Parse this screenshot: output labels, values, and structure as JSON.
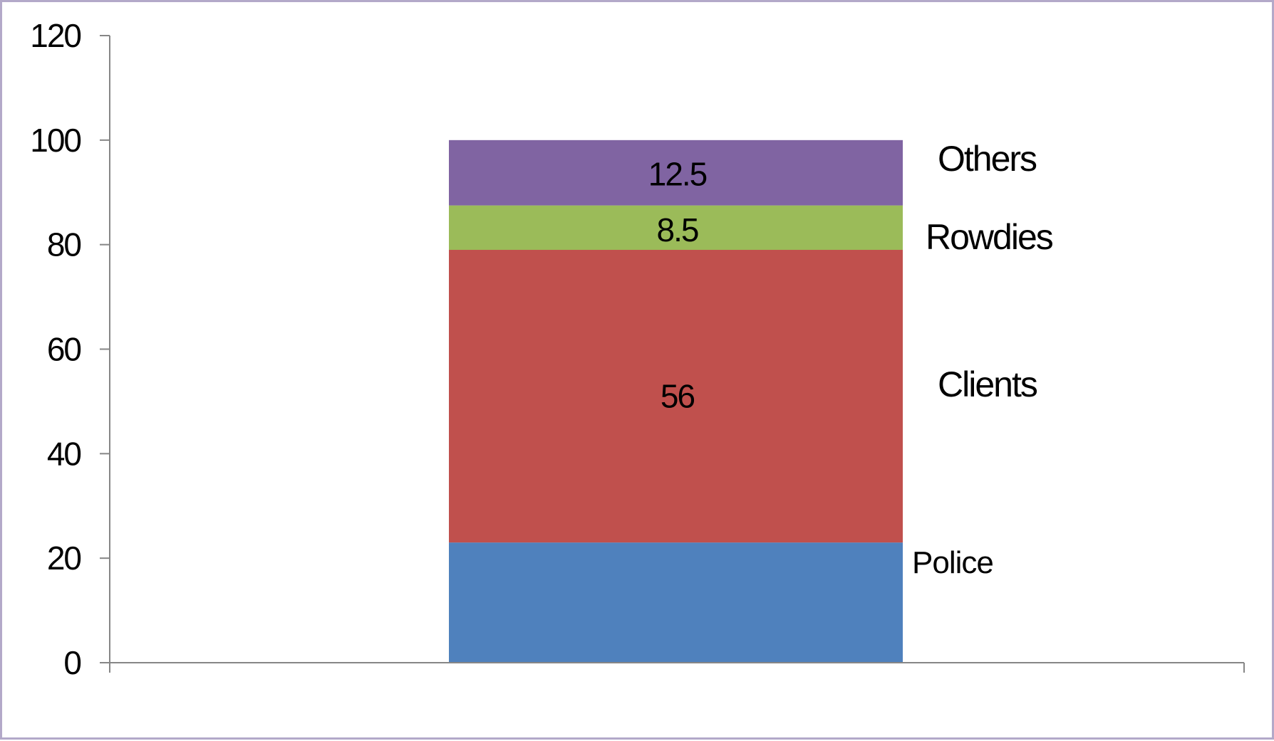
{
  "chart_data": {
    "type": "bar",
    "stacked": true,
    "categories": [
      ""
    ],
    "series": [
      {
        "name": "Police",
        "values": [
          23
        ],
        "color": "#4f81bd",
        "data_label": ""
      },
      {
        "name": "Clients",
        "values": [
          56
        ],
        "color": "#c0504d",
        "data_label": "56"
      },
      {
        "name": "Rowdies",
        "values": [
          8.5
        ],
        "color": "#9bbb59",
        "data_label": "8.5"
      },
      {
        "name": "Others",
        "values": [
          12.5
        ],
        "color": "#8064a2",
        "data_label": "12.5"
      }
    ],
    "title": "",
    "xlabel": "",
    "ylabel": "",
    "ylim": [
      0,
      120
    ],
    "yticks": [
      0,
      20,
      40,
      60,
      80,
      100,
      120
    ],
    "ytick_labels": [
      "0",
      "20",
      "40",
      "60",
      "80",
      "100",
      "120"
    ],
    "grid": false,
    "legend": "labels beside segments",
    "axis_color": "#868686",
    "frame_color": "#b3a9c9"
  }
}
